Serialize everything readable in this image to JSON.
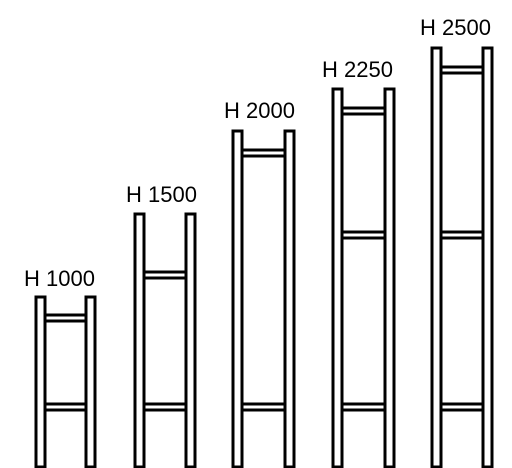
{
  "colors": {
    "stroke": "#000000",
    "background": "#ffffff"
  },
  "frames": [
    {
      "label": "H 1000",
      "height": 1000
    },
    {
      "label": "H 1500",
      "height": 1500
    },
    {
      "label": "H 2000",
      "height": 2000
    },
    {
      "label": "H 2250",
      "height": 2250
    },
    {
      "label": "H 2500",
      "height": 2500
    }
  ]
}
